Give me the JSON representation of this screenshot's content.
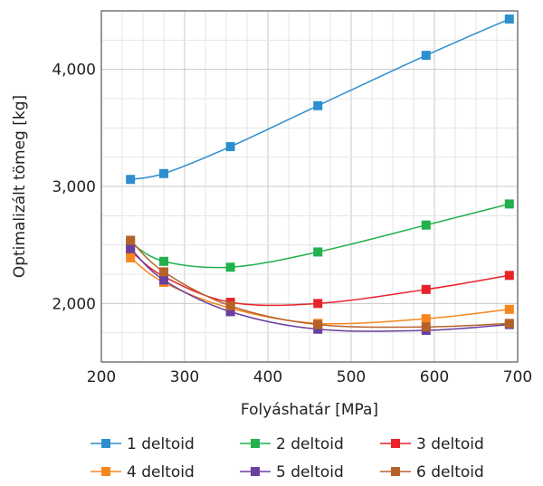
{
  "chart_data": {
    "type": "line",
    "title": "",
    "xlabel": "Folyáshatár [MPa]",
    "ylabel": "Optimalizált tömeg [kg]",
    "xlim": [
      200,
      700
    ],
    "ylim": [
      1500,
      4500
    ],
    "x_ticks": [
      200,
      300,
      400,
      500,
      600,
      700
    ],
    "y_ticks": [
      2000,
      3000,
      4000
    ],
    "x_tick_labels": [
      "200",
      "300",
      "400",
      "500",
      "600",
      "700"
    ],
    "y_tick_labels": [
      "2,000",
      "3,000",
      "4,000"
    ],
    "grid": true,
    "legend_position": "bottom",
    "x": [
      235,
      275,
      355,
      460,
      590,
      690
    ],
    "series": [
      {
        "name": "1 deltoid",
        "color": "#2e8fce",
        "values": [
          3060,
          3110,
          3340,
          3690,
          4120,
          4430
        ]
      },
      {
        "name": "2 deltoid",
        "color": "#22b14c",
        "values": [
          2520,
          2360,
          2310,
          2440,
          2670,
          2850
        ]
      },
      {
        "name": "3 deltoid",
        "color": "#e8232a",
        "values": [
          2450,
          2230,
          2010,
          2000,
          2120,
          2240
        ]
      },
      {
        "name": "4 deltoid",
        "color": "#f5861f",
        "values": [
          2390,
          2180,
          1960,
          1830,
          1870,
          1950
        ]
      },
      {
        "name": "5 deltoid",
        "color": "#6a3fa0",
        "values": [
          2470,
          2200,
          1930,
          1780,
          1770,
          1820
        ]
      },
      {
        "name": "6 deltoid",
        "color": "#b5622a",
        "values": [
          2540,
          2270,
          1980,
          1820,
          1800,
          1830
        ]
      }
    ]
  }
}
